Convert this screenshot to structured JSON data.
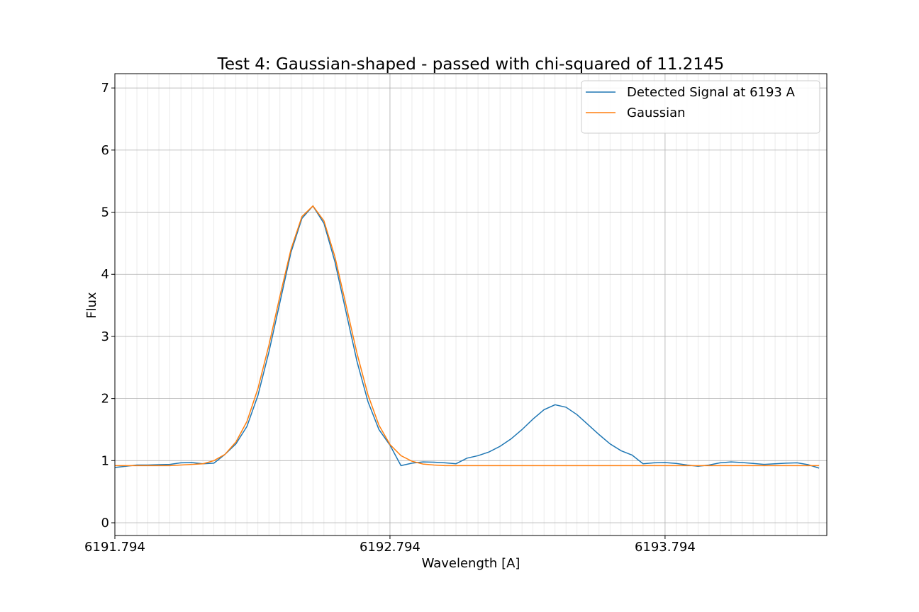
{
  "chart_data": {
    "type": "line",
    "title": "Test 4: Gaussian-shaped - passed with chi-squared of 11.2145",
    "xlabel": "Wavelength [A]",
    "ylabel": "Flux",
    "x": [
      6191.794,
      6191.834,
      6191.874,
      6191.914,
      6191.954,
      6191.994,
      6192.034,
      6192.074,
      6192.114,
      6192.154,
      6192.194,
      6192.234,
      6192.274,
      6192.314,
      6192.354,
      6192.394,
      6192.434,
      6192.474,
      6192.514,
      6192.554,
      6192.594,
      6192.634,
      6192.674,
      6192.714,
      6192.754,
      6192.794,
      6192.834,
      6192.874,
      6192.914,
      6192.954,
      6192.994,
      6193.034,
      6193.074,
      6193.114,
      6193.154,
      6193.194,
      6193.234,
      6193.274,
      6193.314,
      6193.354,
      6193.394,
      6193.434,
      6193.474,
      6193.514,
      6193.554,
      6193.594,
      6193.634,
      6193.674,
      6193.714,
      6193.754,
      6193.794,
      6193.834,
      6193.874,
      6193.914,
      6193.954,
      6193.994,
      6194.034,
      6194.074,
      6194.114,
      6194.154,
      6194.194,
      6194.234,
      6194.274,
      6194.314,
      6194.354
    ],
    "series": [
      {
        "name": "Detected Signal at 6193 A",
        "color": "#1f77b4",
        "values": [
          0.89,
          0.91,
          0.93,
          0.93,
          0.935,
          0.94,
          0.965,
          0.97,
          0.95,
          0.96,
          1.1,
          1.27,
          1.55,
          2.05,
          2.75,
          3.55,
          4.35,
          4.9,
          5.1,
          4.82,
          4.2,
          3.4,
          2.6,
          1.95,
          1.5,
          1.25,
          0.92,
          0.96,
          0.98,
          0.975,
          0.965,
          0.95,
          1.04,
          1.08,
          1.14,
          1.23,
          1.35,
          1.5,
          1.67,
          1.82,
          1.9,
          1.86,
          1.74,
          1.58,
          1.42,
          1.27,
          1.16,
          1.09,
          0.95,
          0.965,
          0.97,
          0.955,
          0.93,
          0.91,
          0.93,
          0.965,
          0.98,
          0.97,
          0.955,
          0.94,
          0.95,
          0.96,
          0.965,
          0.935,
          0.88
        ]
      },
      {
        "name": "Gaussian",
        "color": "#ff7f0e",
        "values": [
          0.92,
          0.92,
          0.92,
          0.92,
          0.92,
          0.92,
          0.93,
          0.94,
          0.95,
          1.0,
          1.1,
          1.3,
          1.63,
          2.16,
          2.86,
          3.65,
          4.4,
          4.93,
          5.1,
          4.86,
          4.28,
          3.51,
          2.73,
          2.06,
          1.57,
          1.26,
          1.08,
          0.99,
          0.945,
          0.93,
          0.92,
          0.92,
          0.92,
          0.92,
          0.92,
          0.92,
          0.92,
          0.92,
          0.92,
          0.92,
          0.92,
          0.92,
          0.92,
          0.92,
          0.92,
          0.92,
          0.92,
          0.92,
          0.92,
          0.92,
          0.92,
          0.92,
          0.92,
          0.92,
          0.92,
          0.92,
          0.92,
          0.92,
          0.92,
          0.92,
          0.92,
          0.92,
          0.92,
          0.92,
          0.92
        ]
      }
    ],
    "xlim": [
      6191.794,
      6194.382
    ],
    "ylim": [
      -0.205,
      7.23
    ],
    "xticks": [
      6191.794,
      6192.794,
      6193.794
    ],
    "yticks": [
      0,
      1,
      2,
      3,
      4,
      5,
      6,
      7
    ],
    "grid": true,
    "minor_grid": true,
    "legend": "upper right"
  }
}
